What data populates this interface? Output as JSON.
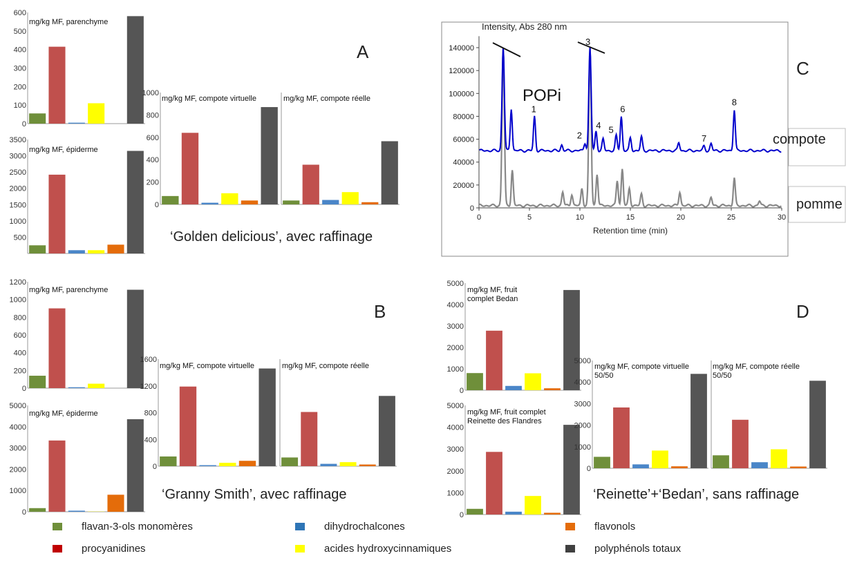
{
  "colors": {
    "flavan": "#6f8f3a",
    "procyan": "#c0504d",
    "dihydro": "#4a86c8",
    "hydroxy": "#ffff00",
    "flavonols": "#e46c0a",
    "total": "#555555"
  },
  "labels": {
    "panel_a": "A",
    "panel_b": "B",
    "panel_c": "C",
    "panel_d": "D",
    "caption_a": "‘Golden delicious’, avec raffinage",
    "caption_b": "‘Granny Smith’, avec raffinage",
    "caption_d": "‘Reinette’+‘Bedan’, sans raffinage"
  },
  "legend": [
    {
      "label": "flavan-3-ols monomères",
      "color": "#6f8f3a"
    },
    {
      "label": "procyanidines",
      "color": "#c00000"
    },
    {
      "label": "dihydrochalcones",
      "color": "#2e75b6"
    },
    {
      "label": "acides hydroxycinnamiques",
      "color": "#ffff00"
    },
    {
      "label": "flavonols",
      "color": "#e46c0a"
    },
    {
      "label": "polyphénols totaux",
      "color": "#404040"
    }
  ],
  "chart_data": [
    {
      "type": "bar",
      "title": "mg/kg MF, parenchyme",
      "yticks": [
        0,
        100,
        200,
        300,
        400,
        500,
        600
      ],
      "ylim": [
        0,
        600
      ],
      "values": [
        55,
        415,
        5,
        110,
        0,
        580
      ]
    },
    {
      "type": "bar",
      "title": "mg/kg MF, épiderme",
      "yticks": [
        500,
        1000,
        1500,
        2000,
        2500,
        3000,
        3500
      ],
      "ylim": [
        0,
        3500
      ],
      "values": [
        250,
        2420,
        100,
        100,
        270,
        3150
      ]
    },
    {
      "type": "bar",
      "title": "mg/kg MF, compote virtuelle",
      "yticks": [
        0,
        200,
        400,
        600,
        800,
        1000
      ],
      "ylim": [
        0,
        1000
      ],
      "values": [
        75,
        640,
        15,
        100,
        35,
        870
      ]
    },
    {
      "type": "bar",
      "title": "mg/kg MF, compote réelle",
      "yticks": [],
      "ylim": [
        0,
        1000
      ],
      "values": [
        35,
        355,
        40,
        110,
        20,
        565
      ]
    },
    {
      "type": "bar",
      "title": "mg/kg MF, parenchyme",
      "yticks": [
        0,
        200,
        400,
        600,
        800,
        1000,
        1200
      ],
      "ylim": [
        0,
        1200
      ],
      "values": [
        140,
        900,
        10,
        50,
        0,
        1110
      ]
    },
    {
      "type": "bar",
      "title": "mg/kg MF, épiderme",
      "yticks": [
        0,
        1000,
        2000,
        3000,
        4000,
        5000
      ],
      "ylim": [
        0,
        5000
      ],
      "values": [
        170,
        3350,
        50,
        10,
        800,
        4350
      ]
    },
    {
      "type": "bar",
      "title": "mg/kg MF, compote virtuelle",
      "yticks": [
        0,
        400,
        800,
        1200,
        1600
      ],
      "ylim": [
        0,
        1600
      ],
      "values": [
        145,
        1190,
        15,
        50,
        80,
        1460
      ]
    },
    {
      "type": "bar",
      "title": "mg/kg MF, compote réelle",
      "yticks": [],
      "ylim": [
        0,
        1600
      ],
      "values": [
        130,
        810,
        35,
        60,
        25,
        1050
      ]
    },
    {
      "type": "bar",
      "title": "mg/kg MF, fruit\ncomplet Bedan",
      "yticks": [
        0,
        1000,
        2000,
        3000,
        4000,
        5000
      ],
      "ylim": [
        0,
        5000
      ],
      "values": [
        800,
        2780,
        200,
        790,
        90,
        4680
      ]
    },
    {
      "type": "bar",
      "title": "mg/kg MF, fruit complet\nReinette des Flandres",
      "yticks": [
        0,
        1000,
        2000,
        3000,
        4000,
        5000
      ],
      "ylim": [
        0,
        5000
      ],
      "values": [
        260,
        2870,
        130,
        850,
        80,
        4110
      ]
    },
    {
      "type": "bar",
      "title": "mg/kg MF, compote virtuelle\n50/50",
      "yticks": [
        0,
        1000,
        2000,
        3000,
        4000,
        5000
      ],
      "ylim": [
        0,
        5000
      ],
      "values": [
        530,
        2820,
        180,
        820,
        90,
        4380
      ]
    },
    {
      "type": "bar",
      "title": "mg/kg MF, compote réelle\n50/50",
      "yticks": [],
      "ylim": [
        0,
        5000
      ],
      "values": [
        600,
        2250,
        280,
        880,
        80,
        4060
      ]
    },
    {
      "type": "line",
      "title": "Intensity, Abs 280 nm",
      "xlabel": "Retention time (min)",
      "xlim": [
        0,
        30
      ],
      "ylim": [
        0,
        150000
      ],
      "xticks": [
        0,
        5,
        10,
        15,
        20,
        25,
        30
      ],
      "yticks": [
        0,
        20000,
        40000,
        60000,
        80000,
        100000,
        120000,
        140000
      ],
      "inner_label": "POPi",
      "series": [
        {
          "name": "compote",
          "color": "#0000cc",
          "baseline": 50000,
          "peaks": [
            [
              2.4,
              140000
            ],
            [
              3.2,
              87000
            ],
            [
              5.5,
              80000
            ],
            [
              8.2,
              55000
            ],
            [
              10.5,
              57000
            ],
            [
              11.0,
              140000
            ],
            [
              11.6,
              67000
            ],
            [
              12.3,
              60000
            ],
            [
              13.6,
              63000
            ],
            [
              14.1,
              80000
            ],
            [
              15.0,
              61000
            ],
            [
              16.1,
              62000
            ],
            [
              19.8,
              57000
            ],
            [
              22.3,
              54000
            ],
            [
              23.0,
              56000
            ],
            [
              25.3,
              86000
            ]
          ]
        },
        {
          "name": "pomme",
          "color": "#888888",
          "baseline": 2000,
          "peaks": [
            [
              2.4,
              140000
            ],
            [
              3.3,
              33000
            ],
            [
              8.3,
              14000
            ],
            [
              9.2,
              12000
            ],
            [
              10.2,
              17000
            ],
            [
              11.0,
              140000
            ],
            [
              11.7,
              30000
            ],
            [
              13.7,
              24000
            ],
            [
              14.2,
              34000
            ],
            [
              14.9,
              17000
            ],
            [
              16.1,
              12000
            ],
            [
              19.9,
              14000
            ],
            [
              23.0,
              9000
            ],
            [
              25.3,
              26000
            ],
            [
              27.8,
              6000
            ]
          ]
        }
      ],
      "peak_labels": [
        {
          "label": "1",
          "x": 5.5,
          "y": 80000
        },
        {
          "label": "2",
          "x": 10.3,
          "y": 57000
        },
        {
          "label": "3",
          "x": 11.0,
          "y": 140000
        },
        {
          "label": "4",
          "x": 11.7,
          "y": 67000
        },
        {
          "label": "5",
          "x": 13.5,
          "y": 63000
        },
        {
          "label": "6",
          "x": 14.1,
          "y": 80000
        },
        {
          "label": "7",
          "x": 22.3,
          "y": 55000
        },
        {
          "label": "8",
          "x": 25.3,
          "y": 86000
        }
      ]
    }
  ]
}
